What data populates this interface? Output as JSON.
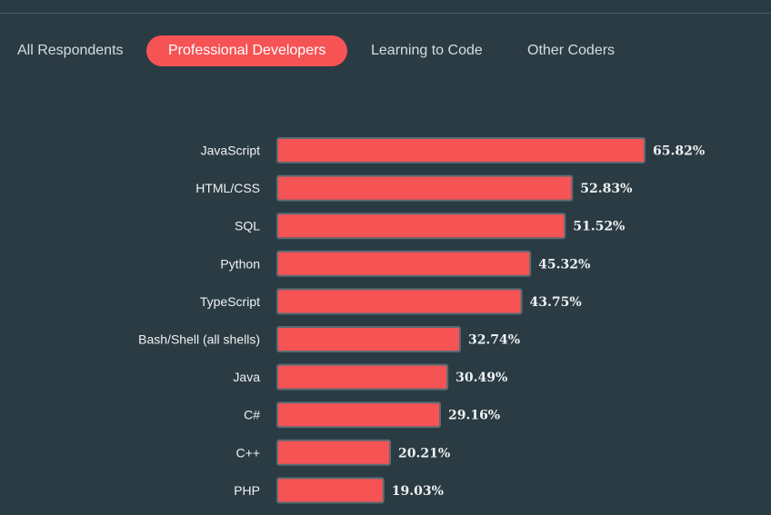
{
  "tabs": [
    {
      "label": "All Respondents",
      "active": false
    },
    {
      "label": "Professional Developers",
      "active": true
    },
    {
      "label": "Learning to Code",
      "active": false
    },
    {
      "label": "Other Coders",
      "active": false
    }
  ],
  "colors": {
    "background": "#2b3b43",
    "bar": "#f65355",
    "bar_border": "#5b6b72",
    "active_tab": "#f65355"
  },
  "chart_data": {
    "type": "bar",
    "orientation": "horizontal",
    "categories": [
      "JavaScript",
      "HTML/CSS",
      "SQL",
      "Python",
      "TypeScript",
      "Bash/Shell (all shells)",
      "Java",
      "C#",
      "C++",
      "PHP"
    ],
    "values": [
      65.82,
      52.83,
      51.52,
      45.32,
      43.75,
      32.74,
      30.49,
      29.16,
      20.21,
      19.03
    ],
    "value_labels": [
      "65.82%",
      "52.83%",
      "51.52%",
      "45.32%",
      "43.75%",
      "32.74%",
      "30.49%",
      "29.16%",
      "20.21%",
      "19.03%"
    ],
    "unit": "%",
    "grid": false
  }
}
